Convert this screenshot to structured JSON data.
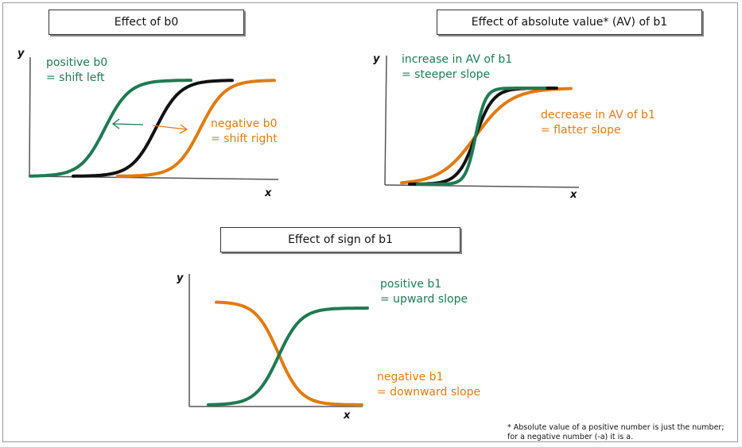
{
  "panel1": {
    "title": "Effect of b0",
    "y_label": "y",
    "x_label": "x",
    "positive_line1": "positive b0",
    "positive_line2": "= shift left",
    "negative_line1": "negative b0",
    "negative_line2": "= shift right"
  },
  "panel2": {
    "title": "Effect of absolute value* (AV) of b1",
    "y_label": "y",
    "x_label": "x",
    "increase_line1": "increase in AV of b1",
    "increase_line2": "= steeper slope",
    "decrease_line1": "decrease in AV of b1",
    "decrease_line2": "= flatter slope"
  },
  "panel3": {
    "title": "Effect of sign of b1",
    "y_label": "y",
    "x_label": "x",
    "positive_line1": "positive b1",
    "positive_line2": "= upward slope",
    "negative_line1": "negative b1",
    "negative_line2": "= downward slope"
  },
  "footnote": {
    "line1": "* Absolute value of a positive number is just the number;",
    "line2": "for a negative number (-a) it is a."
  },
  "colors": {
    "green": "#1f7a52",
    "orange": "#e07b10",
    "black": "#111111",
    "axis": "#555555"
  }
}
